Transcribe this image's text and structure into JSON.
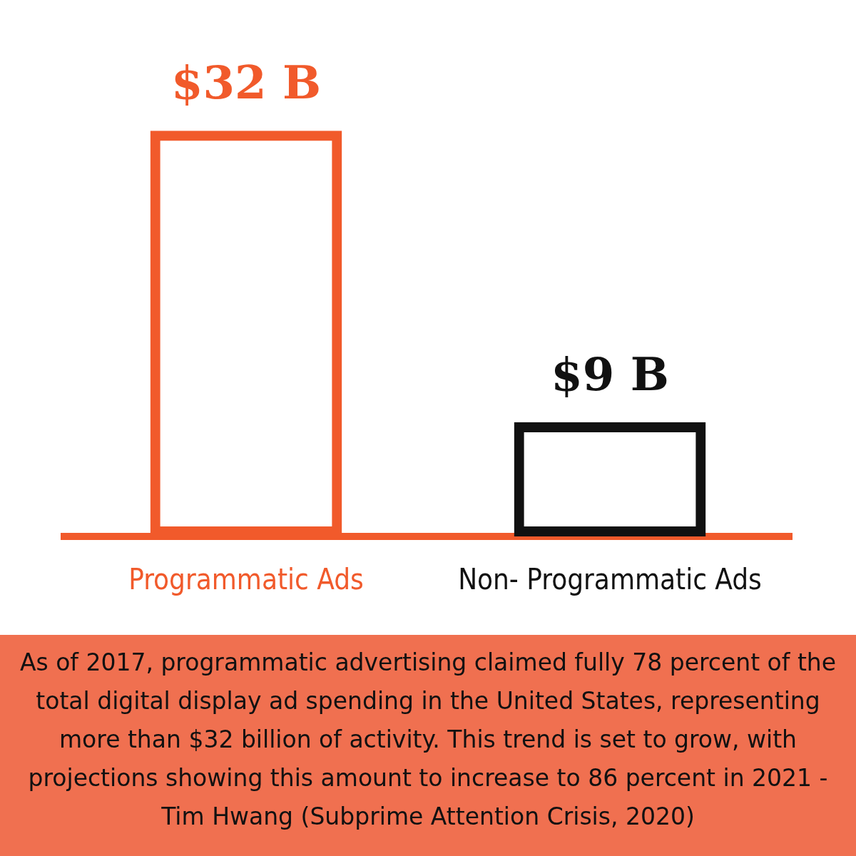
{
  "chart_data": {
    "type": "bar",
    "categories": [
      "Programmatic Ads",
      "Non- Programmatic Ads"
    ],
    "values": [
      32,
      9
    ],
    "colors": [
      "#f15a2b",
      "#111111"
    ],
    "value_labels": [
      "$32 B",
      "$9 B"
    ],
    "grid": false,
    "legend": false,
    "annotations": [
      "As of 2017, programmatic advertising claimed fully 78 percent of the total digital display ad spending in the United States, representing more than $32 billion of activity. This trend is set to grow, with projections showing this amount to increase to 86 percent in 2021 - Tim Hwang (Subprime Attention Crisis, 2020)"
    ]
  }
}
